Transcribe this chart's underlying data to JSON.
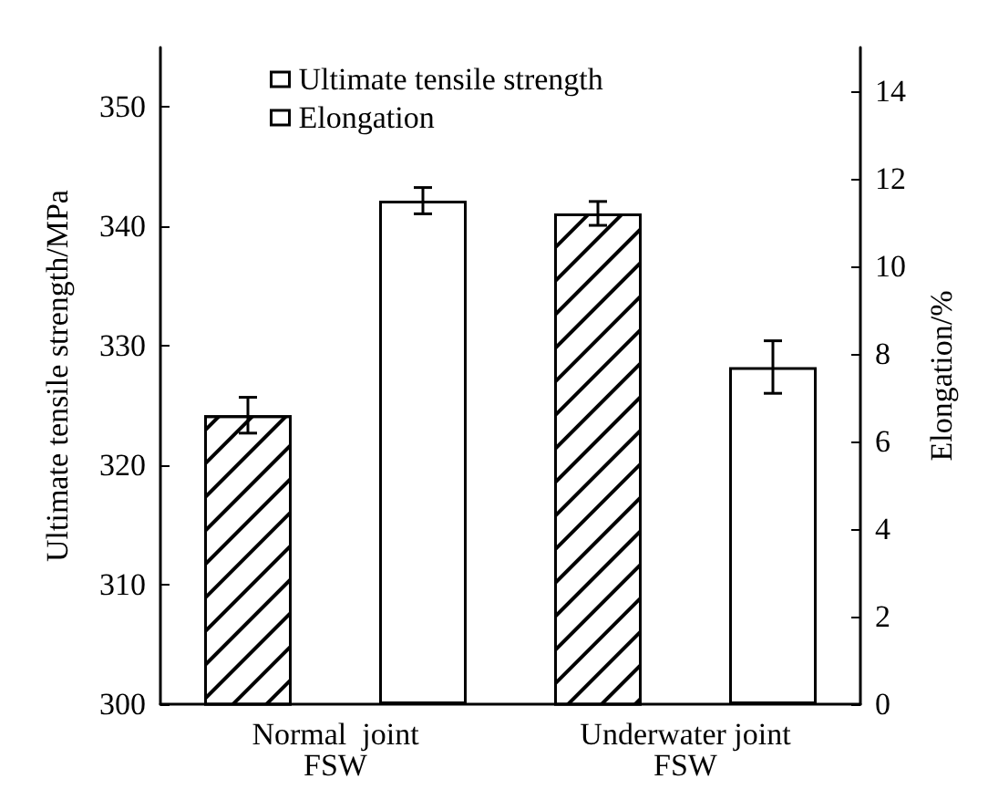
{
  "chart_data": {
    "type": "bar",
    "ylabel": "Ultimate tensile strength/MPa",
    "y2label": "Elongation/%",
    "categories": [
      "Normal  joint\nFSW",
      "Underwater joint\nFSW"
    ],
    "series": [
      {
        "name": "Ultimate tensile strength",
        "color": "#ffffff",
        "values": [
          324.2,
          341.1
        ],
        "errors": [
          1.5,
          1
        ]
      },
      {
        "name": "Elongation",
        "color": "#ffffff",
        "axis": "y2",
        "values": [
          11.5,
          7.7
        ],
        "errors": [
          0.3,
          0.6
        ]
      }
    ],
    "ylim": [
      300,
      355
    ],
    "yticks": [
      300,
      310,
      320,
      330,
      340,
      350
    ],
    "y2lim": [
      0,
      15
    ],
    "y2ticks": [
      0,
      2,
      4,
      6,
      8,
      10,
      12,
      14
    ],
    "legend": "top left",
    "grid": false
  }
}
